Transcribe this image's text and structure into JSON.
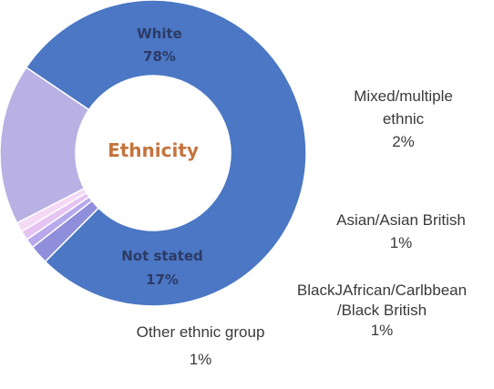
{
  "chart_data": {
    "type": "pie",
    "variant": "donut",
    "center_label": "Ethnicity",
    "slices": [
      {
        "label": "White",
        "value": 78,
        "display": "78%",
        "color": "#4b77c4"
      },
      {
        "label": "Mixed/multiple ethnic",
        "value": 2,
        "display": "2%",
        "color": "#8f8edb"
      },
      {
        "label": "Asian/Asian British",
        "value": 1,
        "display": "1%",
        "color": "#b8a9ec"
      },
      {
        "label": "BlackJAfrican/Carlbbean /Black British",
        "value": 1,
        "display": "1%",
        "color": "#e6c4f1"
      },
      {
        "label": "Other ethnic group",
        "value": 1,
        "display": "1%",
        "color": "#f4d9f4"
      },
      {
        "label": "Not stated",
        "value": 17,
        "display": "17%",
        "color": "#b9b0e4"
      }
    ],
    "colors": {
      "center_text": "#c4743d",
      "inner_label_text": "#2d3a66"
    }
  },
  "labels": {
    "white_name": "White",
    "white_pct": "78%",
    "not_stated_name": "Not stated",
    "not_stated_pct": "17%",
    "center": "Ethnicity",
    "mixed_line1": "Mixed/multiple",
    "mixed_line2": "ethnic",
    "mixed_pct": "2%",
    "asian_name": "Asian/Asian  British",
    "asian_pct": "1%",
    "black_line1": "BlackJAfrican/Carlbbean",
    "black_line2": "/Black British",
    "black_pct": "1%",
    "other_name": "Other ethnic group",
    "other_pct": "1%"
  }
}
